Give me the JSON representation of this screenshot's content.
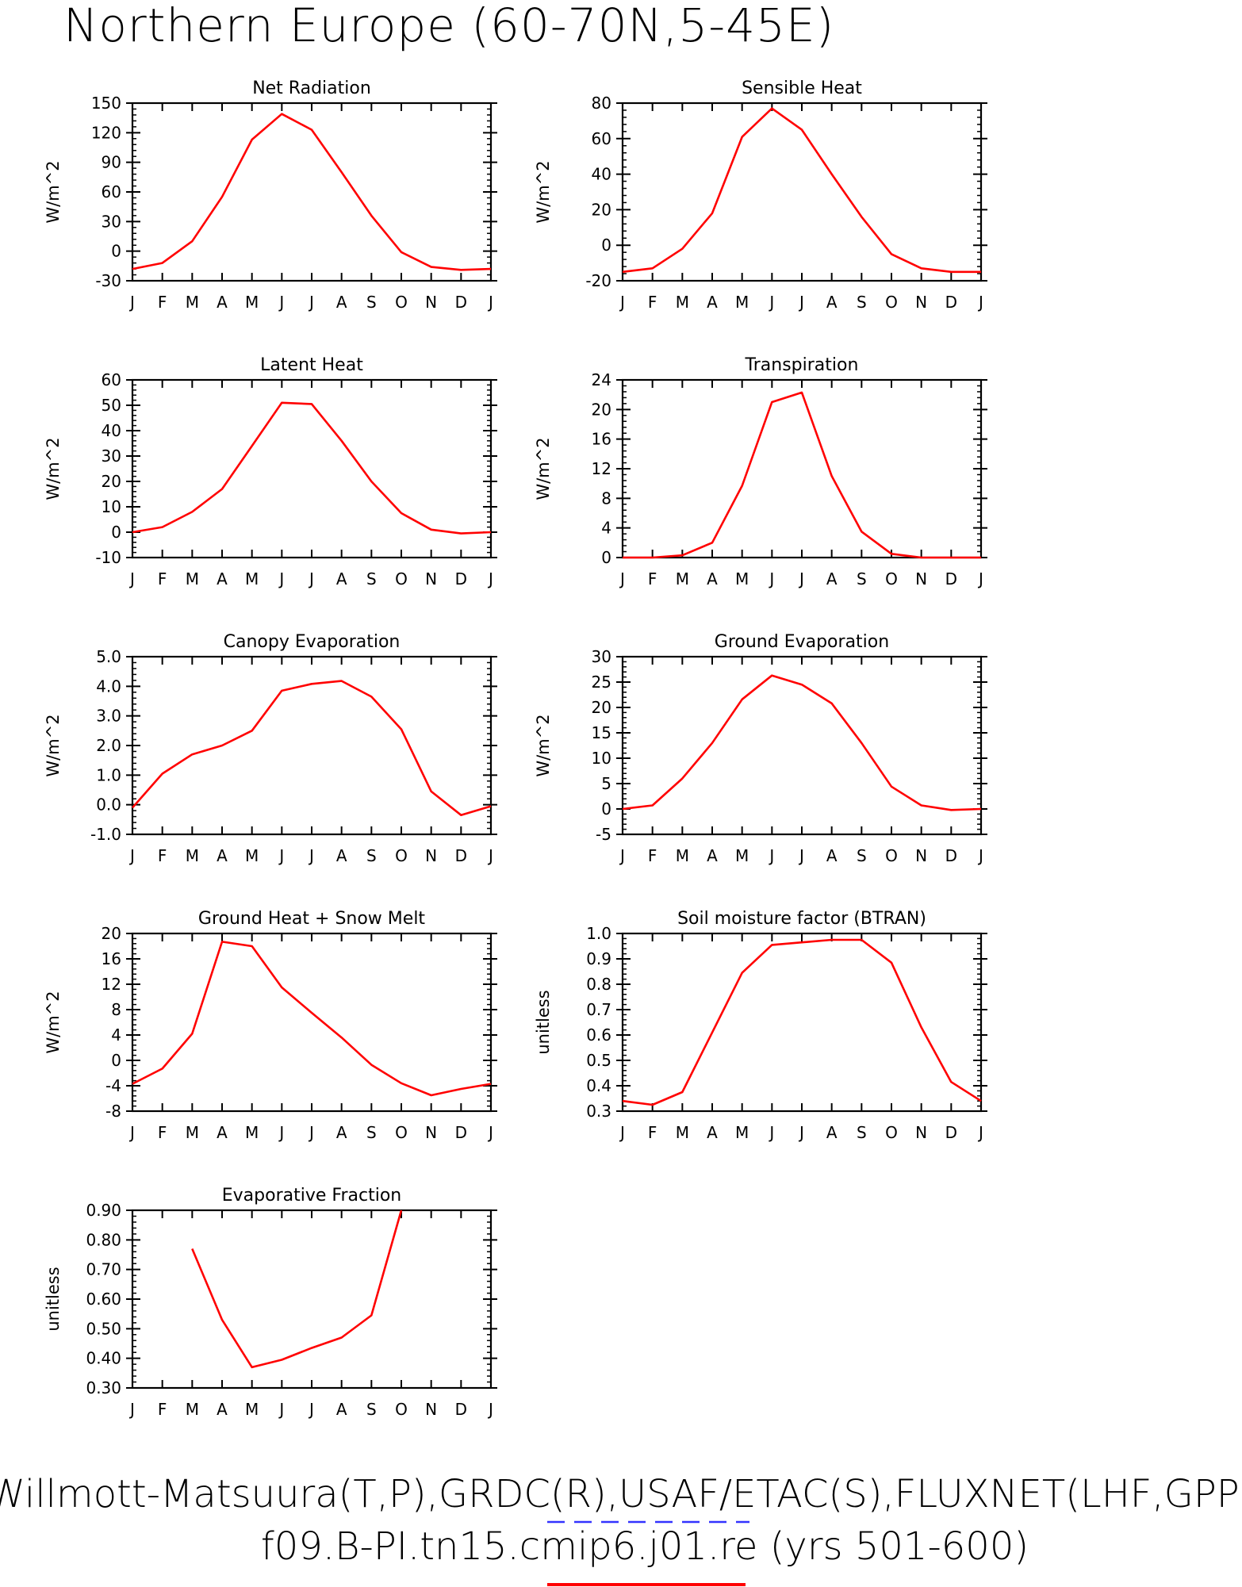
{
  "title": "Northern Europe (60-70N,5-45E)",
  "footer": {
    "line1": "Willmott-Matsuura(T,P),GRDC(R),USAF/ETAC(S),FLUXNET(LHF,GPP)",
    "line2": "f09.B-PI.tn15.cmip6.j01.re (yrs 501-600)",
    "line1_underline_color": "#3333ff",
    "line2_underline_color": "#ff0000"
  },
  "colors": {
    "series": "#ff0000",
    "axes": "#000000"
  },
  "chart_data": [
    {
      "type": "line",
      "title": "Net Radiation",
      "ylabel": "W/m^2",
      "categories": [
        "J",
        "F",
        "M",
        "A",
        "M",
        "J",
        "J",
        "A",
        "S",
        "O",
        "N",
        "D",
        "J"
      ],
      "ylim": [
        -30,
        150
      ],
      "yticks": [
        -30,
        0,
        30,
        60,
        90,
        120,
        150
      ],
      "ytick_labels": [
        "-30",
        "0",
        "30",
        "60",
        "90",
        "120",
        "150"
      ],
      "values": [
        -18,
        -12,
        10,
        55,
        113,
        139,
        123,
        80,
        36,
        -1,
        -16,
        -19,
        -18
      ]
    },
    {
      "type": "line",
      "title": "Sensible Heat",
      "ylabel": "W/m^2",
      "categories": [
        "J",
        "F",
        "M",
        "A",
        "M",
        "J",
        "J",
        "A",
        "S",
        "O",
        "N",
        "D",
        "J"
      ],
      "ylim": [
        -20,
        80
      ],
      "yticks": [
        -20,
        0,
        20,
        40,
        60,
        80
      ],
      "ytick_labels": [
        "-20",
        "0",
        "20",
        "40",
        "60",
        "80"
      ],
      "values": [
        -15,
        -13,
        -2,
        18,
        61,
        77,
        65,
        40,
        16,
        -5,
        -13,
        -15,
        -15
      ]
    },
    {
      "type": "line",
      "title": "Latent Heat",
      "ylabel": "W/m^2",
      "categories": [
        "J",
        "F",
        "M",
        "A",
        "M",
        "J",
        "J",
        "A",
        "S",
        "O",
        "N",
        "D",
        "J"
      ],
      "ylim": [
        -10,
        60
      ],
      "yticks": [
        -10,
        0,
        10,
        20,
        30,
        40,
        50,
        60
      ],
      "ytick_labels": [
        "-10",
        "0",
        "10",
        "20",
        "30",
        "40",
        "50",
        "60"
      ],
      "values": [
        0,
        2,
        8,
        17,
        34,
        51,
        50.5,
        36,
        20,
        7.5,
        1,
        -0.5,
        0
      ]
    },
    {
      "type": "line",
      "title": "Transpiration",
      "ylabel": "W/m^2",
      "categories": [
        "J",
        "F",
        "M",
        "A",
        "M",
        "J",
        "J",
        "A",
        "S",
        "O",
        "N",
        "D",
        "J"
      ],
      "ylim": [
        0,
        24
      ],
      "yticks": [
        0,
        4,
        8,
        12,
        16,
        20,
        24
      ],
      "ytick_labels": [
        "0",
        "4",
        "8",
        "12",
        "16",
        "20",
        "24"
      ],
      "values": [
        0,
        0,
        0.3,
        2,
        9.7,
        21,
        22.3,
        11,
        3.5,
        0.5,
        0,
        0,
        0
      ]
    },
    {
      "type": "line",
      "title": "Canopy Evaporation",
      "ylabel": "W/m^2",
      "categories": [
        "J",
        "F",
        "M",
        "A",
        "M",
        "J",
        "J",
        "A",
        "S",
        "O",
        "N",
        "D",
        "J"
      ],
      "ylim": [
        -1,
        5
      ],
      "yticks": [
        -1,
        0,
        1,
        2,
        3,
        4,
        5
      ],
      "ytick_labels": [
        "-1.0",
        "0.0",
        "1.0",
        "2.0",
        "3.0",
        "4.0",
        "5.0"
      ],
      "values": [
        -0.1,
        1.05,
        1.7,
        2.0,
        2.5,
        3.85,
        4.08,
        4.18,
        3.65,
        2.55,
        0.45,
        -0.35,
        -0.05
      ]
    },
    {
      "type": "line",
      "title": "Ground Evaporation",
      "ylabel": "W/m^2",
      "categories": [
        "J",
        "F",
        "M",
        "A",
        "M",
        "J",
        "J",
        "A",
        "S",
        "O",
        "N",
        "D",
        "J"
      ],
      "ylim": [
        -5,
        30
      ],
      "yticks": [
        -5,
        0,
        5,
        10,
        15,
        20,
        25,
        30
      ],
      "ytick_labels": [
        "-5",
        "0",
        "5",
        "10",
        "15",
        "20",
        "25",
        "30"
      ],
      "values": [
        0,
        0.7,
        6,
        13,
        21.6,
        26.3,
        24.5,
        20.8,
        13,
        4.4,
        0.7,
        -0.2,
        0
      ]
    },
    {
      "type": "line",
      "title": "Ground Heat + Snow Melt",
      "ylabel": "W/m^2",
      "categories": [
        "J",
        "F",
        "M",
        "A",
        "M",
        "J",
        "J",
        "A",
        "S",
        "O",
        "N",
        "D",
        "J"
      ],
      "ylim": [
        -8,
        20
      ],
      "yticks": [
        -8,
        -4,
        0,
        4,
        8,
        12,
        16,
        20
      ],
      "ytick_labels": [
        "-8",
        "-4",
        "0",
        "4",
        "8",
        "12",
        "16",
        "20"
      ],
      "values": [
        -3.7,
        -1.3,
        4.2,
        18.7,
        18,
        11.5,
        7.5,
        3.6,
        -0.7,
        -3.6,
        -5.5,
        -4.5,
        -3.7
      ]
    },
    {
      "type": "line",
      "title": "Soil moisture factor (BTRAN)",
      "ylabel": "unitless",
      "categories": [
        "J",
        "F",
        "M",
        "A",
        "M",
        "J",
        "J",
        "A",
        "S",
        "O",
        "N",
        "D",
        "J"
      ],
      "ylim": [
        0.3,
        1.0
      ],
      "yticks": [
        0.3,
        0.4,
        0.5,
        0.6,
        0.7,
        0.8,
        0.9,
        1.0
      ],
      "ytick_labels": [
        "0.3",
        "0.4",
        "0.5",
        "0.6",
        "0.7",
        "0.8",
        "0.9",
        "1.0"
      ],
      "values": [
        0.34,
        0.325,
        0.375,
        0.61,
        0.845,
        0.955,
        0.965,
        0.975,
        0.975,
        0.885,
        0.63,
        0.415,
        0.34
      ]
    },
    {
      "type": "line",
      "title": "Evaporative Fraction",
      "ylabel": "unitless",
      "categories": [
        "J",
        "F",
        "M",
        "A",
        "M",
        "J",
        "J",
        "A",
        "S",
        "O",
        "N",
        "D",
        "J"
      ],
      "ylim": [
        0.3,
        0.9
      ],
      "yticks": [
        0.3,
        0.4,
        0.5,
        0.6,
        0.7,
        0.8,
        0.9
      ],
      "ytick_labels": [
        "0.30",
        "0.40",
        "0.50",
        "0.60",
        "0.70",
        "0.80",
        "0.90"
      ],
      "values": [
        null,
        null,
        0.77,
        0.53,
        0.37,
        0.395,
        0.435,
        0.47,
        0.545,
        0.9,
        null,
        null,
        null
      ]
    }
  ]
}
